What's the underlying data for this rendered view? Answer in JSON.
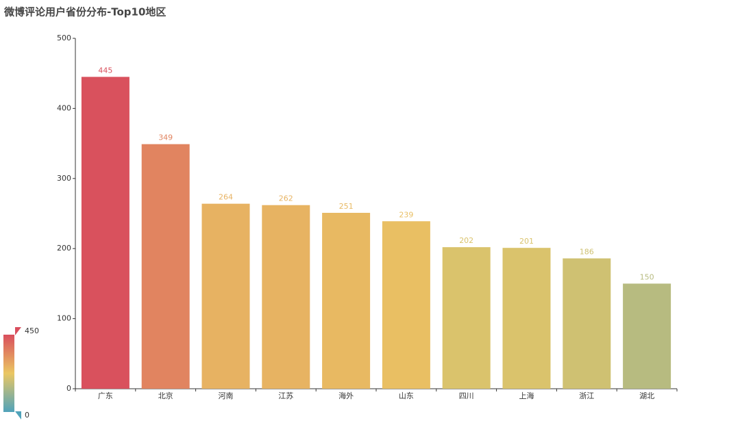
{
  "chart_data": {
    "type": "bar",
    "title": "微博评论用户省份分布-Top10地区",
    "categories": [
      "广东",
      "北京",
      "河南",
      "江苏",
      "海外",
      "山东",
      "四川",
      "上海",
      "浙江",
      "湖北"
    ],
    "values": [
      445,
      349,
      264,
      262,
      251,
      239,
      202,
      201,
      186,
      150
    ],
    "ylim": [
      0,
      500
    ],
    "yticks": [
      0,
      100,
      200,
      300,
      400,
      500
    ],
    "grid": false,
    "visual_map": {
      "min": 0,
      "max": 450,
      "colors": [
        "#50a3ba",
        "#eac763",
        "#d94e5d"
      ]
    }
  }
}
